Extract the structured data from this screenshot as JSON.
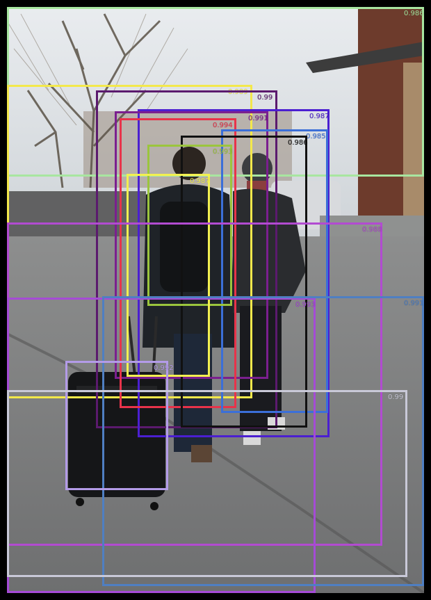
{
  "detections": [
    {
      "label": "0.986",
      "color": "#a8e6a0"
    },
    {
      "label": "0.989",
      "color": "#f3e84b"
    },
    {
      "label": "0.99",
      "color": "#5b1a6e"
    },
    {
      "label": "0.987",
      "color": "#4b1fd1"
    },
    {
      "label": "0.991",
      "color": "#7b1f8f"
    },
    {
      "label": "0.994",
      "color": "#e8334a"
    },
    {
      "label": "0.985",
      "color": "#3b6fd8"
    },
    {
      "label": "0.986",
      "color": "#111111"
    },
    {
      "label": "0.993",
      "color": "#9bc53d"
    },
    {
      "label": "0.987",
      "color": "#f2f050"
    },
    {
      "label": "0.988",
      "color": "#b24bd1"
    },
    {
      "label": "0.993",
      "color": "#a54bd6"
    },
    {
      "label": "0.991",
      "color": "#4f7fc2"
    },
    {
      "label": "0.992",
      "color": "#b39be8"
    },
    {
      "label": "0.99",
      "color": "#c9c9d8"
    }
  ]
}
